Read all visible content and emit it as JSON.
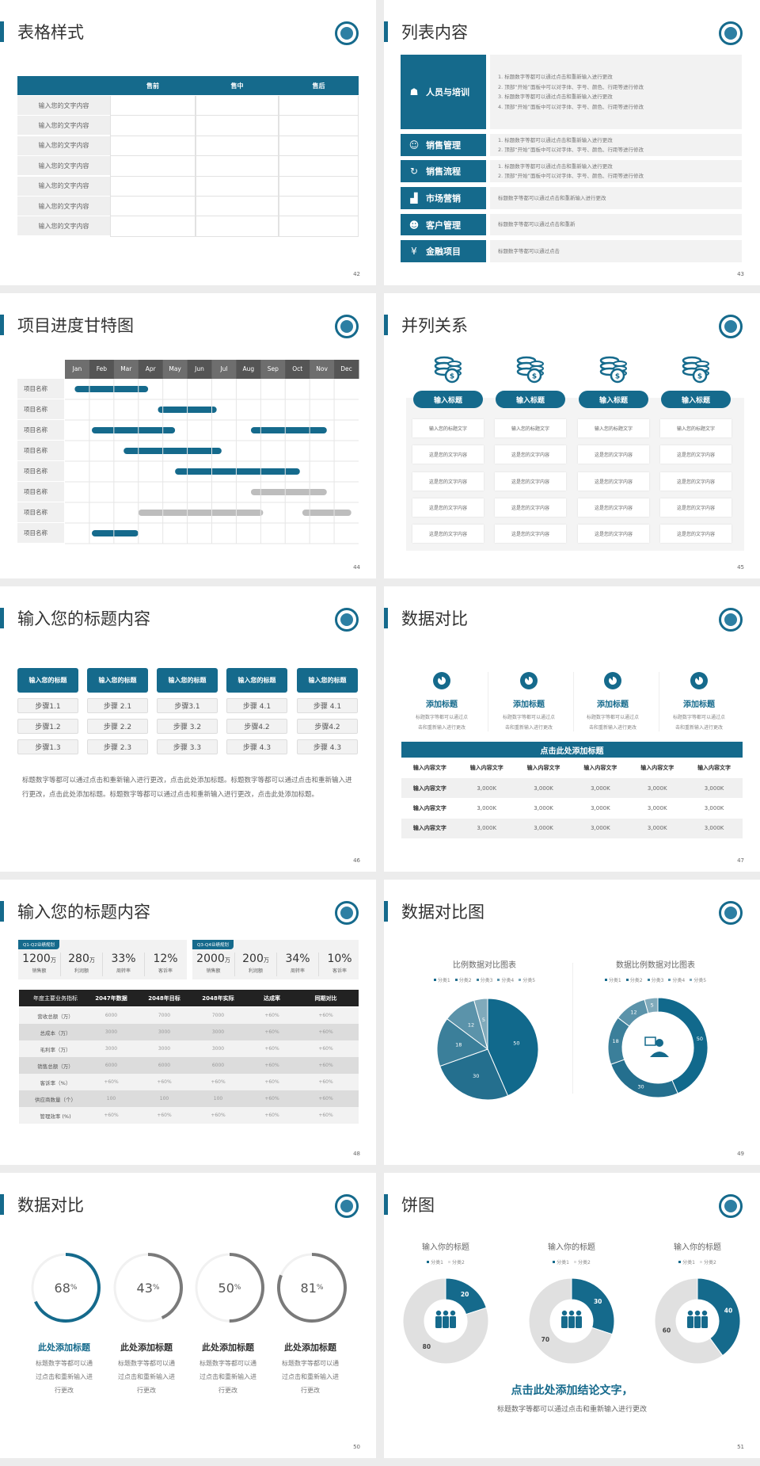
{
  "colors": {
    "accent": "#156a8c",
    "gray": "#bdbdbd",
    "light": "#e0e0e0"
  },
  "slides": [
    {
      "page": "42",
      "title": "表格样式",
      "header": [
        "",
        "售前",
        "售中",
        "售后"
      ],
      "rows": [
        "输入您的文字内容",
        "输入您的文字内容",
        "输入您的文字内容",
        "输入您的文字内容",
        "输入您的文字内容",
        "输入您的文字内容",
        "输入您的文字内容"
      ]
    },
    {
      "page": "43",
      "title": "列表内容",
      "items": [
        {
          "label": "人员与培训",
          "icon": "people-training-icon",
          "glyph": "☗",
          "lines": [
            "1.  标题数字等都可以通过点击和重新输入进行更改",
            "2.  顶部“开始”面板中可以对字体、字号、颜色、行距等进行修改",
            "3.  标题数字等都可以通过点击和重新输入进行更改",
            "4.  顶部“开始”面板中可以对字体、字号、颜色、行距等进行修改"
          ]
        },
        {
          "label": "销售管理",
          "icon": "user-gear-icon",
          "glyph": "☺",
          "lines": [
            "1.  标题数字等都可以通过点击和重新输入进行更改",
            "2.  顶部“开始”面板中可以对字体、字号、颜色、行距等进行修改"
          ]
        },
        {
          "label": "销售流程",
          "icon": "cycle-icon",
          "glyph": "↻",
          "lines": [
            "1.  标题数字等都可以通过点击和重新输入进行更改",
            "2.  顶部“开始”面板中可以对字体、字号、颜色、行距等进行修改"
          ]
        },
        {
          "label": "市场营销",
          "icon": "bar-chart-icon",
          "glyph": "▟",
          "lines": [
            "标题数字等都可以通过点击和重新输入进行更改"
          ]
        },
        {
          "label": "客户管理",
          "icon": "customers-icon",
          "glyph": "☻",
          "lines": [
            "标题数字等都可以通过点击和重新"
          ]
        },
        {
          "label": "金融项目",
          "icon": "money-hand-icon",
          "glyph": "¥",
          "lines": [
            "标题数字等都可以通过点击"
          ]
        }
      ]
    },
    {
      "page": "44",
      "title": "项目进度甘特图",
      "chart_data": {
        "type": "gantt",
        "months": [
          "Jan",
          "Feb",
          "Mar",
          "Apr",
          "May",
          "Jun",
          "Jul",
          "Aug",
          "Sep",
          "Oct",
          "Nov",
          "Dec"
        ],
        "rows": [
          {
            "label": "项目名称",
            "bars": [
              {
                "start": 0.4,
                "end": 3.4,
                "color": "blue"
              }
            ]
          },
          {
            "label": "项目名称",
            "bars": [
              {
                "start": 3.8,
                "end": 6.2,
                "color": "blue"
              }
            ]
          },
          {
            "label": "项目名称",
            "bars": [
              {
                "start": 1.1,
                "end": 4.5,
                "color": "blue"
              },
              {
                "start": 7.6,
                "end": 10.7,
                "color": "blue"
              }
            ]
          },
          {
            "label": "项目名称",
            "bars": [
              {
                "start": 2.4,
                "end": 6.4,
                "color": "blue"
              }
            ]
          },
          {
            "label": "项目名称",
            "bars": [
              {
                "start": 4.5,
                "end": 9.6,
                "color": "blue"
              }
            ]
          },
          {
            "label": "项目名称",
            "bars": [
              {
                "start": 7.6,
                "end": 10.7,
                "color": "gray"
              }
            ]
          },
          {
            "label": "项目名称",
            "bars": [
              {
                "start": 3.0,
                "end": 8.1,
                "color": "gray"
              },
              {
                "start": 9.7,
                "end": 11.7,
                "color": "gray"
              }
            ]
          },
          {
            "label": "项目名称",
            "bars": [
              {
                "start": 1.1,
                "end": 3.0,
                "color": "blue"
              }
            ]
          }
        ]
      }
    },
    {
      "page": "45",
      "title": "并列关系",
      "columns": [
        {
          "title": "输入标题",
          "cells": [
            "输入您的标题文字",
            "这是您的文字内容",
            "这是您的文字内容",
            "这是您的文字内容",
            "这是您的文字内容"
          ]
        },
        {
          "title": "输入标题",
          "cells": [
            "输入您的标题文字",
            "这是您的文字内容",
            "这是您的文字内容",
            "这是您的文字内容",
            "这是您的文字内容"
          ]
        },
        {
          "title": "输入标题",
          "cells": [
            "输入您的标题文字",
            "这是您的文字内容",
            "这是您的文字内容",
            "这是您的文字内容",
            "这是您的文字内容"
          ]
        },
        {
          "title": "输入标题",
          "cells": [
            "输入您的标题文字",
            "这是您的文字内容",
            "这是您的文字内容",
            "这是您的文字内容",
            "这是您的文字内容"
          ]
        }
      ]
    },
    {
      "page": "46",
      "title": "输入您的标题内容",
      "columns": [
        {
          "title": "输入您的标题",
          "steps": [
            "步骤1.1",
            "步骤1.2",
            "步骤1.3"
          ]
        },
        {
          "title": "输入您的标题",
          "steps": [
            "步骤 2.1",
            "步骤 2.2",
            "步骤 2.3"
          ]
        },
        {
          "title": "输入您的标题",
          "steps": [
            "步骤3.1",
            "步骤 3.2",
            "步骤 3.3"
          ]
        },
        {
          "title": "输入您的标题",
          "steps": [
            "步骤 4.1",
            "步骤4.2",
            "步骤 4.3"
          ]
        },
        {
          "title": "输入您的标题",
          "steps": [
            "步骤 4.1",
            "步骤4.2",
            "步骤 4.3"
          ]
        }
      ],
      "paragraph": "标题数字等都可以通过点击和重新输入进行更改，点击此处添加标题。标题数字等都可以通过点击和重新输入进行更改，点击此处添加标题。标题数字等都可以通过点击和重新输入进行更改，点击此处添加标题。"
    },
    {
      "page": "47",
      "title": "数据对比",
      "features": [
        {
          "title": "添加标题",
          "lines": [
            "标题数字等都可以通过点",
            "击和重新输入进行更改"
          ]
        },
        {
          "title": "添加标题",
          "lines": [
            "标题数字等都可以通过点",
            "击和重新输入进行更改"
          ]
        },
        {
          "title": "添加标题",
          "lines": [
            "标题数字等都可以通过点",
            "击和重新输入进行更改"
          ]
        },
        {
          "title": "添加标题",
          "lines": [
            "标题数字等都可以通过点",
            "击和重新输入进行更改"
          ]
        }
      ],
      "table_title": "点击此处添加标题",
      "header": [
        "输入内容文字",
        "输入内容文字",
        "输入内容文字",
        "输入内容文字",
        "输入内容文字",
        "输入内容文字"
      ],
      "rows": [
        [
          "输入内容文字",
          "3,000K",
          "3,000K",
          "3,000K",
          "3,000K",
          "3,000K"
        ],
        [
          "输入内容文字",
          "3,000K",
          "3,000K",
          "3,000K",
          "3,000K",
          "3,000K"
        ],
        [
          "输入内容文字",
          "3,000K",
          "3,000K",
          "3,000K",
          "3,000K",
          "3,000K"
        ]
      ]
    },
    {
      "page": "48",
      "title": "输入您的标题内容",
      "panels": [
        {
          "tag": "Q1-Q2业绩规划",
          "stats": [
            {
              "value": "1200",
              "unit": "万",
              "label": "销售额"
            },
            {
              "value": "280",
              "unit": "万",
              "label": "利润额"
            },
            {
              "value": "33%",
              "unit": "",
              "label": "周转率"
            },
            {
              "value": "12%",
              "unit": "",
              "label": "客诉率"
            }
          ]
        },
        {
          "tag": "Q3-Q4业绩规划",
          "stats": [
            {
              "value": "2000",
              "unit": "万",
              "label": "销售额"
            },
            {
              "value": "200",
              "unit": "万",
              "label": "利润额"
            },
            {
              "value": "34%",
              "unit": "",
              "label": "周转率"
            },
            {
              "value": "10%",
              "unit": "",
              "label": "客诉率"
            }
          ]
        }
      ],
      "header": [
        "年度主要业务指标",
        "2047年数据",
        "2048年目标",
        "2048年实际",
        "达成率",
        "同期对比"
      ],
      "rows": [
        [
          "营收总额（万）",
          "6000",
          "7000",
          "7000",
          "+60%",
          "+60%"
        ],
        [
          "总成本（万）",
          "3000",
          "3000",
          "3000",
          "+60%",
          "+60%"
        ],
        [
          "毛利率（万）",
          "3000",
          "3000",
          "3000",
          "+60%",
          "+60%"
        ],
        [
          "销售总额（万）",
          "6000",
          "6000",
          "6000",
          "+60%",
          "+60%"
        ],
        [
          "客诉率（%）",
          "+60%",
          "+60%",
          "+60%",
          "+60%",
          "+60%"
        ],
        [
          "供应商数量（个）",
          "100",
          "100",
          "100",
          "+60%",
          "+60%"
        ],
        [
          "管理效率 (%)",
          "+60%",
          "+60%",
          "+60%",
          "+60%",
          "+60%"
        ]
      ]
    },
    {
      "page": "49",
      "title": "数据对比图",
      "chart_data": [
        {
          "type": "pie",
          "title": "比例数据对比图表",
          "legend": [
            "分类1",
            "分类2",
            "分类3",
            "分类4",
            "分类5"
          ],
          "values": [
            50,
            30,
            18,
            12,
            5
          ]
        },
        {
          "type": "donut",
          "title": "数据比例数据对比图表",
          "legend": [
            "分类1",
            "分类2",
            "分类3",
            "分类4",
            "分类5"
          ],
          "values": [
            50,
            30,
            18,
            12,
            5
          ]
        }
      ],
      "series_colors": [
        "#11698c",
        "#246f8e",
        "#3b7f9a",
        "#5b93aa",
        "#80aabb"
      ]
    },
    {
      "page": "50",
      "title": "数据对比",
      "rings": [
        {
          "value": 68,
          "color": "#156a8c",
          "title": "此处添加标题",
          "lines": [
            "标题数字等都可以通",
            "过点击和重新输入进",
            "行更改"
          ]
        },
        {
          "value": 43,
          "color": "#7a7a7a",
          "title": "此处添加标题",
          "lines": [
            "标题数字等都可以通",
            "过点击和重新输入进",
            "行更改"
          ]
        },
        {
          "value": 50,
          "color": "#7a7a7a",
          "title": "此处添加标题",
          "lines": [
            "标题数字等都可以通",
            "过点击和重新输入进",
            "行更改"
          ]
        },
        {
          "value": 81,
          "color": "#7a7a7a",
          "title": "此处添加标题",
          "lines": [
            "标题数字等都可以通",
            "过点击和重新输入进",
            "行更改"
          ]
        }
      ],
      "percent_sign": "%"
    },
    {
      "page": "51",
      "title": "饼图",
      "chart_data": [
        {
          "type": "donut",
          "title": "输入你的标题",
          "legend": [
            "分类1",
            "分类2"
          ],
          "values": [
            20,
            80
          ]
        },
        {
          "type": "donut",
          "title": "输入你的标题",
          "legend": [
            "分类1",
            "分类2"
          ],
          "values": [
            30,
            70
          ]
        },
        {
          "type": "donut",
          "title": "输入你的标题",
          "legend": [
            "分类1",
            "分类2"
          ],
          "values": [
            40,
            60
          ]
        }
      ],
      "conclusion": "点击此处添加结论文字，",
      "subtext": "标题数字等都可以通过点击和重新输入进行更改"
    }
  ]
}
